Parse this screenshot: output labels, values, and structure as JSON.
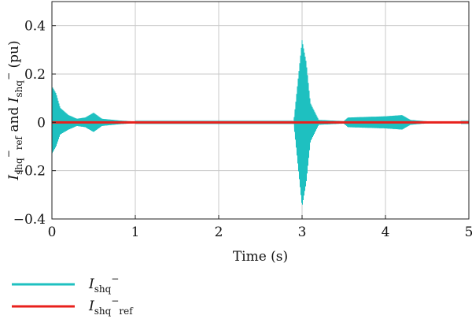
{
  "chart_data": {
    "type": "line",
    "xlabel": "Time (s)",
    "ylabel": {
      "main1": "I",
      "sub1": "shq",
      "sup1": "−",
      "sub1b": "ref",
      "mid": " and ",
      "main2": "I",
      "sub2": "shq",
      "sup2": "−",
      "unit": " (pu)"
    },
    "xlim": [
      0,
      5
    ],
    "ylim": [
      -0.4,
      0.5
    ],
    "x_ticks": [
      0,
      1,
      2,
      3,
      4,
      5
    ],
    "x_tick_labels": [
      "0",
      "1",
      "2",
      "3",
      "4",
      "5"
    ],
    "y_ticks": [
      -0.4,
      -0.2,
      0,
      0.2,
      0.4
    ],
    "y_tick_labels": [
      "−0.4",
      "−0.2",
      "0",
      "0.2",
      "0.4"
    ],
    "grid": true,
    "legend_position": "bottom-left",
    "series": [
      {
        "name": "I_shq^-",
        "legend": {
          "main": "I",
          "sub": "shq",
          "sup": "−",
          "subb": ""
        },
        "color": "#1ec0c0",
        "envelope": [
          {
            "x": 0.0,
            "upper": 0.15,
            "lower": -0.13
          },
          {
            "x": 0.05,
            "upper": 0.12,
            "lower": -0.1
          },
          {
            "x": 0.1,
            "upper": 0.06,
            "lower": -0.05
          },
          {
            "x": 0.2,
            "upper": 0.03,
            "lower": -0.03
          },
          {
            "x": 0.3,
            "upper": 0.015,
            "lower": -0.015
          },
          {
            "x": 0.4,
            "upper": 0.02,
            "lower": -0.02
          },
          {
            "x": 0.5,
            "upper": 0.04,
            "lower": -0.04
          },
          {
            "x": 0.6,
            "upper": 0.015,
            "lower": -0.015
          },
          {
            "x": 0.8,
            "upper": 0.008,
            "lower": -0.008
          },
          {
            "x": 1.0,
            "upper": 0.003,
            "lower": -0.003
          },
          {
            "x": 2.9,
            "upper": 0.003,
            "lower": -0.003
          },
          {
            "x": 3.0,
            "upper": 0.34,
            "lower": -0.35
          },
          {
            "x": 3.05,
            "upper": 0.25,
            "lower": -0.25
          },
          {
            "x": 3.1,
            "upper": 0.08,
            "lower": -0.08
          },
          {
            "x": 3.2,
            "upper": 0.01,
            "lower": -0.01
          },
          {
            "x": 3.5,
            "upper": 0.005,
            "lower": -0.005
          },
          {
            "x": 3.55,
            "upper": 0.02,
            "lower": -0.02
          },
          {
            "x": 4.0,
            "upper": 0.025,
            "lower": -0.025
          },
          {
            "x": 4.2,
            "upper": 0.03,
            "lower": -0.03
          },
          {
            "x": 4.3,
            "upper": 0.01,
            "lower": -0.01
          },
          {
            "x": 4.5,
            "upper": 0.004,
            "lower": -0.004
          },
          {
            "x": 5.0,
            "upper": 0.003,
            "lower": -0.003
          }
        ]
      },
      {
        "name": "I_shq^-_ref",
        "legend": {
          "main": "I",
          "sub": "shq",
          "sup": "−",
          "subb": "ref"
        },
        "color": "#e8201c",
        "x": [
          0,
          5
        ],
        "y": [
          0,
          0
        ]
      }
    ]
  }
}
